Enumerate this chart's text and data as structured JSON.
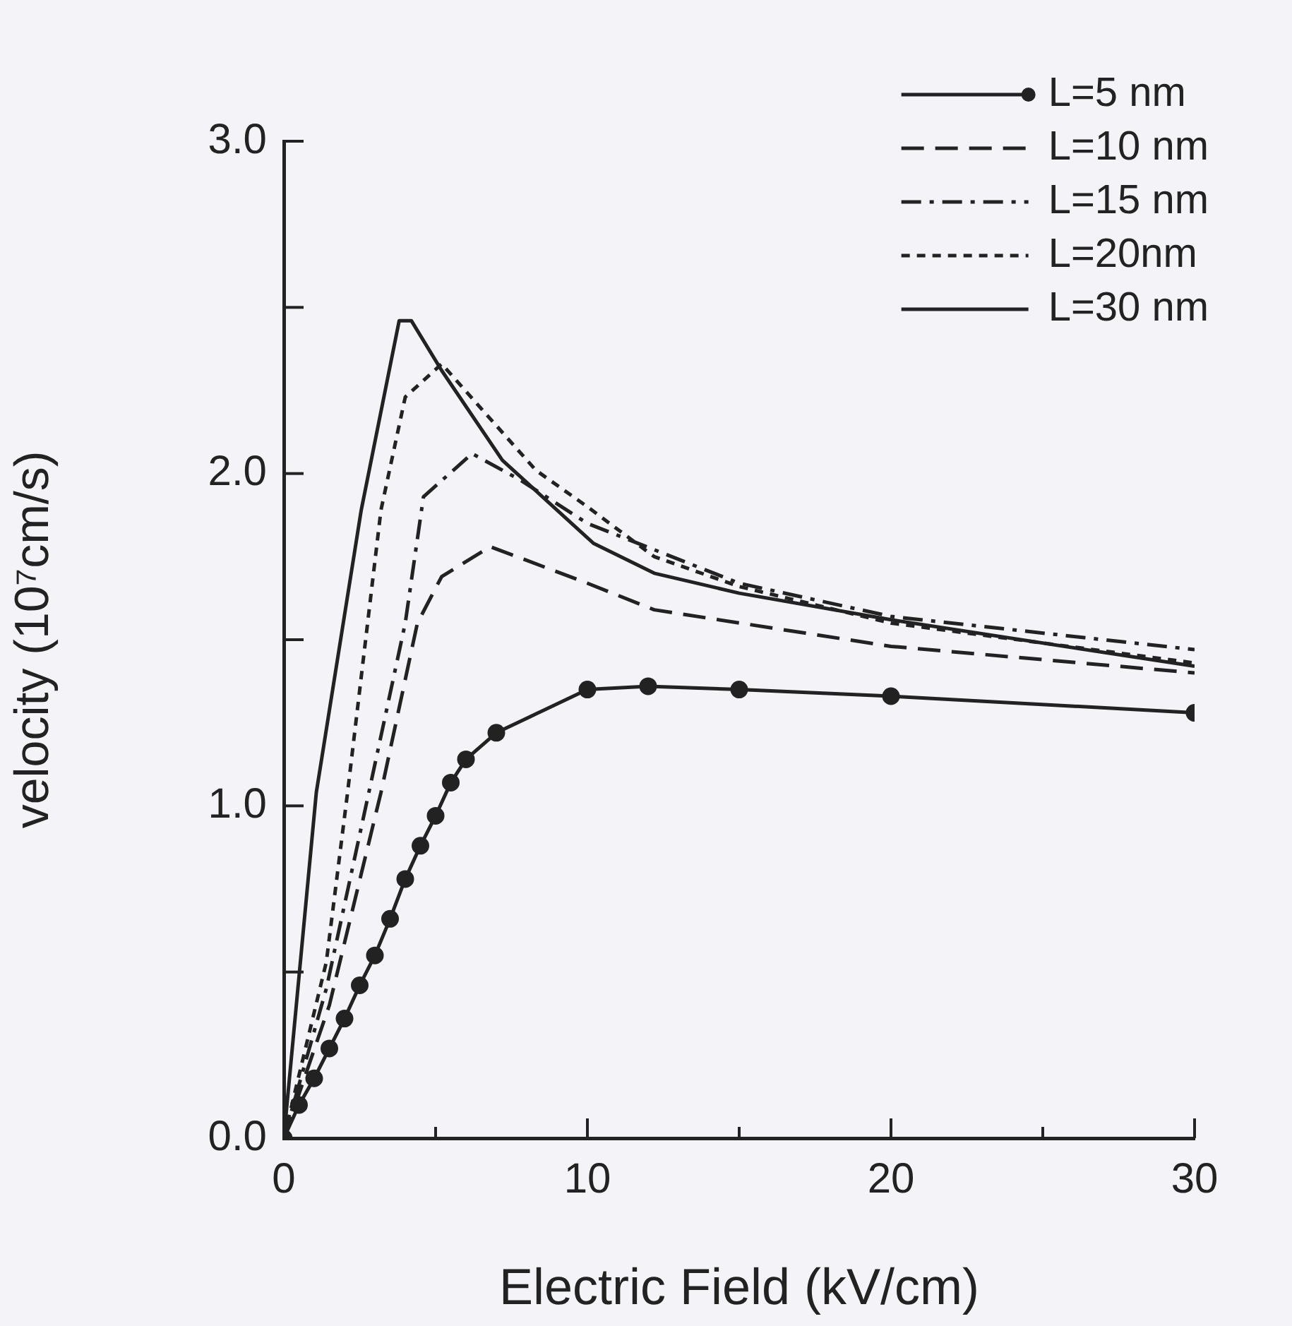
{
  "chart_data": {
    "type": "line",
    "xlabel": "Electric Field (kV/cm)",
    "ylabel": "velocity (10⁷cm/s)",
    "xlim": [
      0,
      30
    ],
    "ylim": [
      0,
      3
    ],
    "xticks": [
      0,
      {
        "value": 5,
        "label": null
      },
      10,
      {
        "value": 15,
        "label": null
      },
      20,
      {
        "value": 25,
        "label": null
      },
      30
    ],
    "yticks": [
      {
        "value": 0,
        "label": "0.0"
      },
      {
        "value": 0.5,
        "label": null
      },
      {
        "value": 1,
        "label": "1.0"
      },
      {
        "value": 1.5,
        "label": null
      },
      {
        "value": 2,
        "label": "2.0"
      },
      {
        "value": 2.5,
        "label": null
      },
      {
        "value": 3,
        "label": "3.0"
      }
    ],
    "legend": "top right",
    "series": [
      {
        "name": "L=5 nm",
        "color": "#222222",
        "marker": "circle",
        "line_style": "solid",
        "x": [
          0,
          0.5,
          1,
          1.5,
          2,
          2.5,
          3,
          3.5,
          4,
          4.5,
          5,
          5.5,
          6,
          7,
          10,
          12,
          15,
          20,
          30
        ],
        "values": [
          0,
          0.1,
          0.18,
          0.27,
          0.36,
          0.46,
          0.55,
          0.66,
          0.78,
          0.88,
          0.97,
          1.07,
          1.14,
          1.22,
          1.35,
          1.36,
          1.35,
          1.33,
          1.28
        ]
      },
      {
        "name": "L=10 nm",
        "color": "#222222",
        "marker": "none",
        "line_style": "dashed",
        "x": [
          0,
          1.5,
          3.2,
          4.4,
          5.2,
          6.8,
          10,
          12.2,
          20,
          30
        ],
        "values": [
          0,
          0.4,
          1.04,
          1.55,
          1.69,
          1.78,
          1.67,
          1.59,
          1.48,
          1.4
        ]
      },
      {
        "name": "L=15 nm",
        "color": "#222222",
        "marker": "none",
        "line_style": "dashdot",
        "x": [
          0,
          1.4,
          2.8,
          4,
          4.6,
          6.2,
          7.8,
          10,
          15,
          20,
          30
        ],
        "values": [
          0,
          0.45,
          1.04,
          1.55,
          1.93,
          2.06,
          1.98,
          1.85,
          1.67,
          1.57,
          1.47
        ]
      },
      {
        "name": "L=20nm",
        "color": "#222222",
        "marker": "none",
        "line_style": "dotted",
        "x": [
          0,
          1.4,
          2.1,
          3.2,
          4,
          5.2,
          8.3,
          10,
          12.2,
          15,
          20,
          30
        ],
        "values": [
          0,
          0.53,
          1.04,
          1.89,
          2.23,
          2.33,
          2.01,
          1.9,
          1.75,
          1.66,
          1.55,
          1.43
        ]
      },
      {
        "name": "L=30 nm",
        "color": "#222222",
        "marker": "none",
        "line_style": "solid",
        "x": [
          0,
          1.07,
          2.55,
          3.8,
          4.2,
          5.2,
          7.2,
          10.2,
          12.2,
          15,
          20,
          30
        ],
        "values": [
          0,
          1.04,
          1.89,
          2.46,
          2.46,
          2.31,
          2.04,
          1.79,
          1.7,
          1.64,
          1.56,
          1.42
        ]
      }
    ]
  }
}
